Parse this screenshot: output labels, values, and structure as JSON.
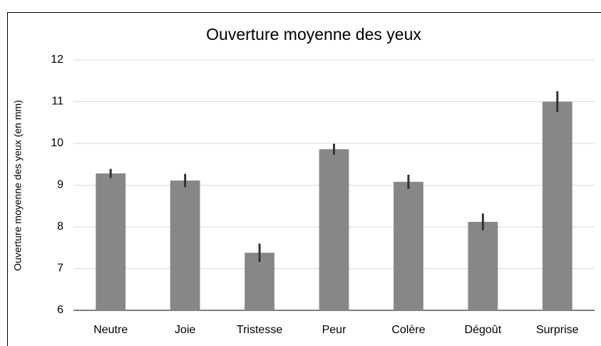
{
  "chart_data": {
    "type": "bar",
    "title": "Ouverture moyenne des yeux",
    "y_label": "Ouverture moyenne des yeux (en mm)",
    "categories": [
      "Neutre",
      "Joie",
      "Tristesse",
      "Peur",
      "Colère",
      "Dégoût",
      "Surprise"
    ],
    "values": [
      9.28,
      9.11,
      7.38,
      9.86,
      9.08,
      8.12,
      11.0
    ],
    "errors": [
      0.11,
      0.16,
      0.22,
      0.13,
      0.17,
      0.2,
      0.25
    ],
    "color": "#878787",
    "error_color": "#333333",
    "ylim": [
      6,
      12
    ],
    "yticks": [
      6,
      7,
      8,
      9,
      10,
      11,
      12
    ],
    "grid": true
  }
}
